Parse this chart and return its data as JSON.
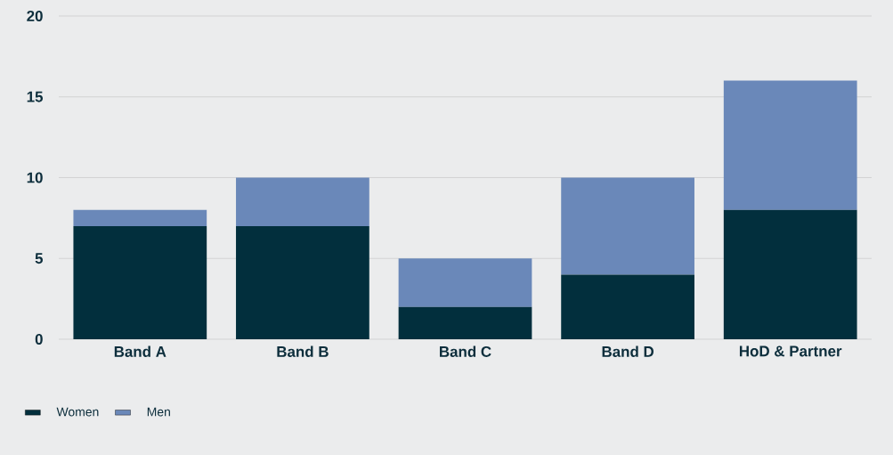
{
  "chart_data": {
    "type": "bar",
    "stacked": true,
    "categories": [
      "Band A",
      "Band B",
      "Band C",
      "Band D",
      "HoD & Partner"
    ],
    "series": [
      {
        "name": "Women",
        "color": "#022f3d",
        "values": [
          7,
          7,
          2,
          4,
          8
        ]
      },
      {
        "name": "Men",
        "color": "#6a88b9",
        "values": [
          1,
          3,
          3,
          6,
          8
        ]
      }
    ],
    "ylim": [
      0,
      20
    ],
    "yticks": [
      0,
      5,
      10,
      15,
      20
    ],
    "grid": "y",
    "legend": "bottom left"
  }
}
